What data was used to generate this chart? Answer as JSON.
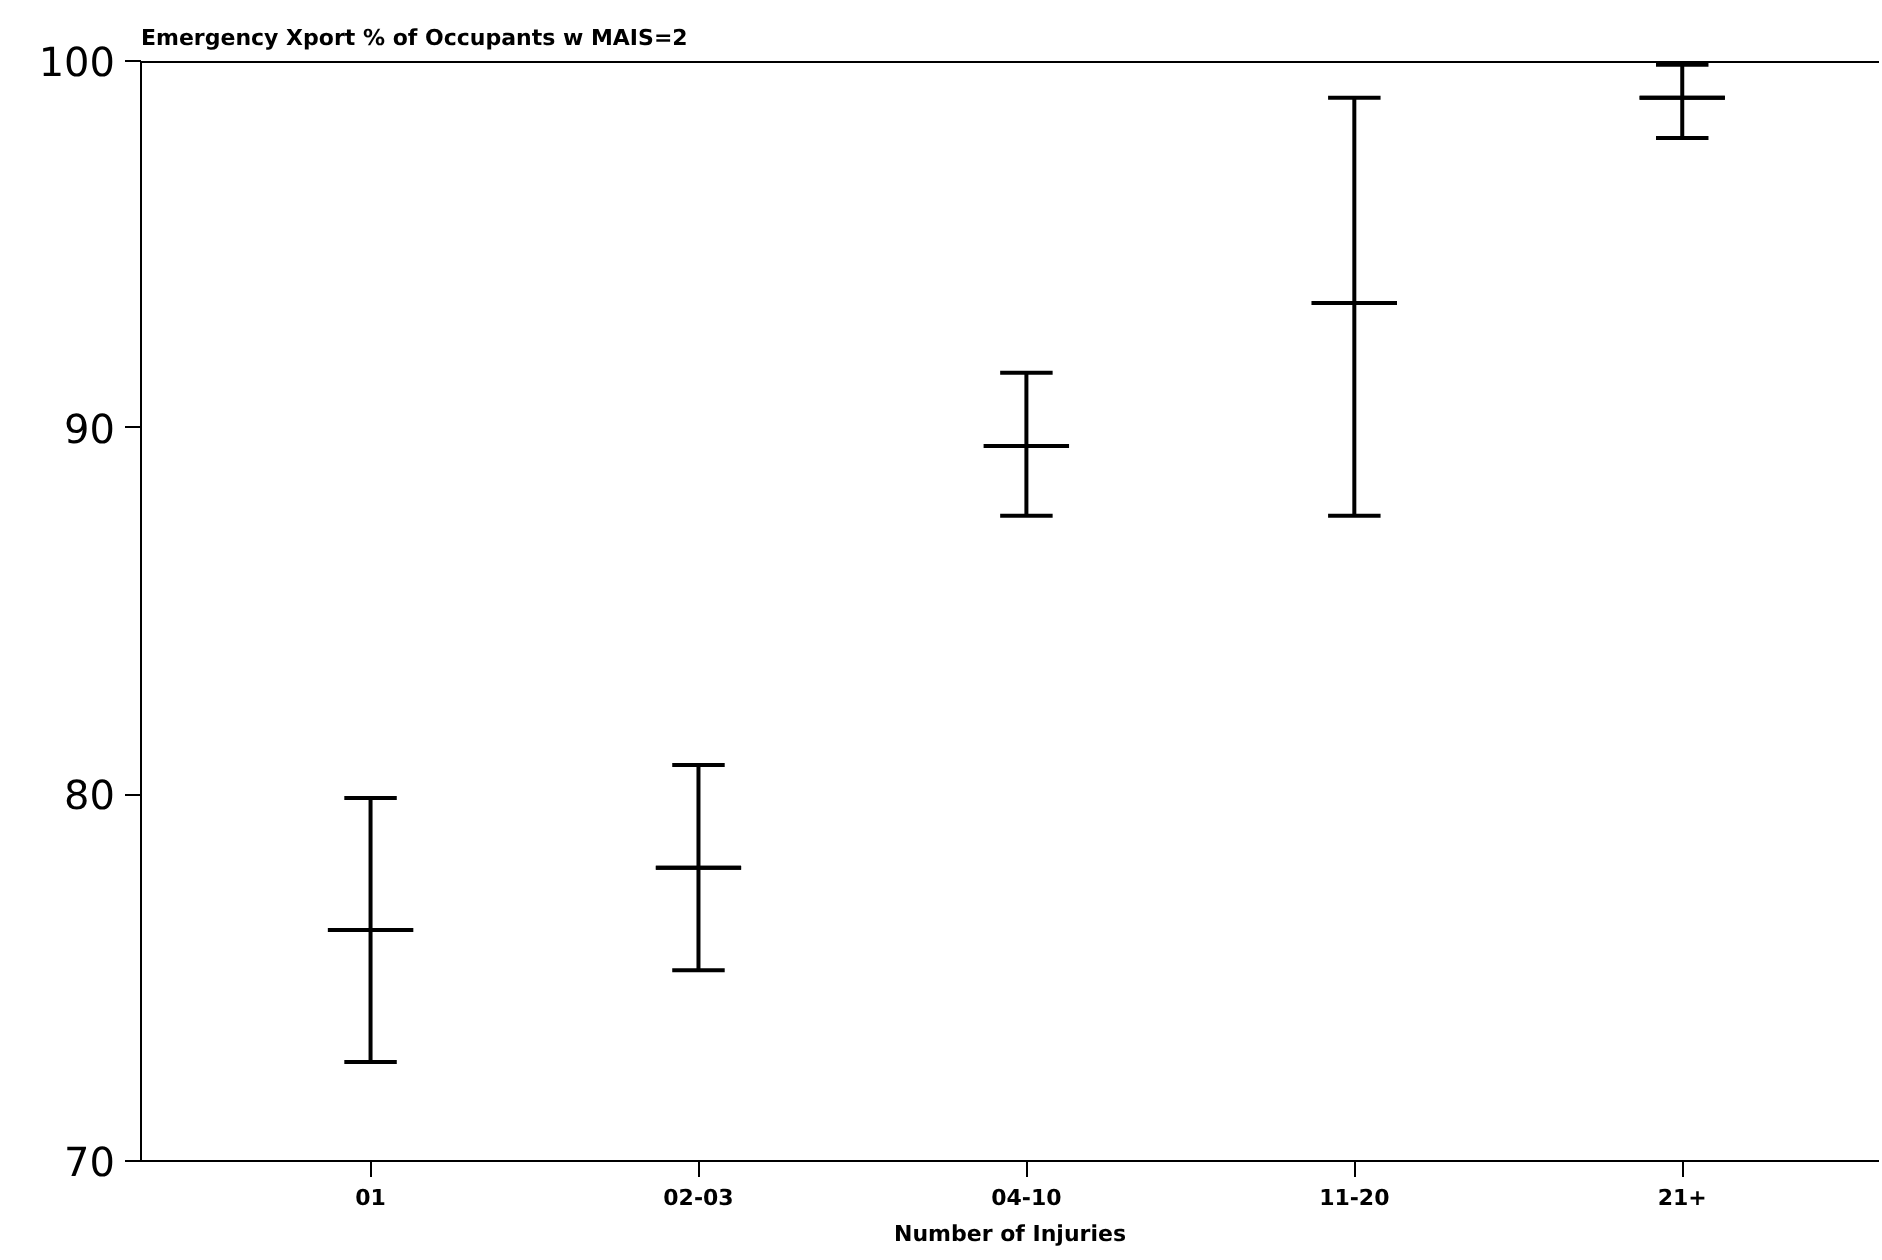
{
  "chart_data": {
    "type": "box",
    "title": "Emergency Xport % of Occupants w MAIS=2",
    "xlabel": "Number of Injuries",
    "categories": [
      "01",
      "02-03",
      "04-10",
      "11-20",
      "21+"
    ],
    "boxes": [
      {
        "low": 72.7,
        "q1": 76.3,
        "median": 76.3,
        "q3": 76.3,
        "high": 79.9
      },
      {
        "low": 75.2,
        "q1": 78.0,
        "median": 78.0,
        "q3": 78.0,
        "high": 80.8
      },
      {
        "low": 87.6,
        "q1": 89.5,
        "median": 89.5,
        "q3": 89.5,
        "high": 91.5
      },
      {
        "low": 87.6,
        "q1": 93.4,
        "median": 93.4,
        "q3": 93.4,
        "high": 99.0
      },
      {
        "low": 97.9,
        "q1": 99.0,
        "median": 99.0,
        "q3": 99.0,
        "high": 99.9
      }
    ],
    "ylim": [
      70,
      100
    ],
    "yticks": [
      70,
      80,
      90,
      100
    ],
    "grid": false
  }
}
